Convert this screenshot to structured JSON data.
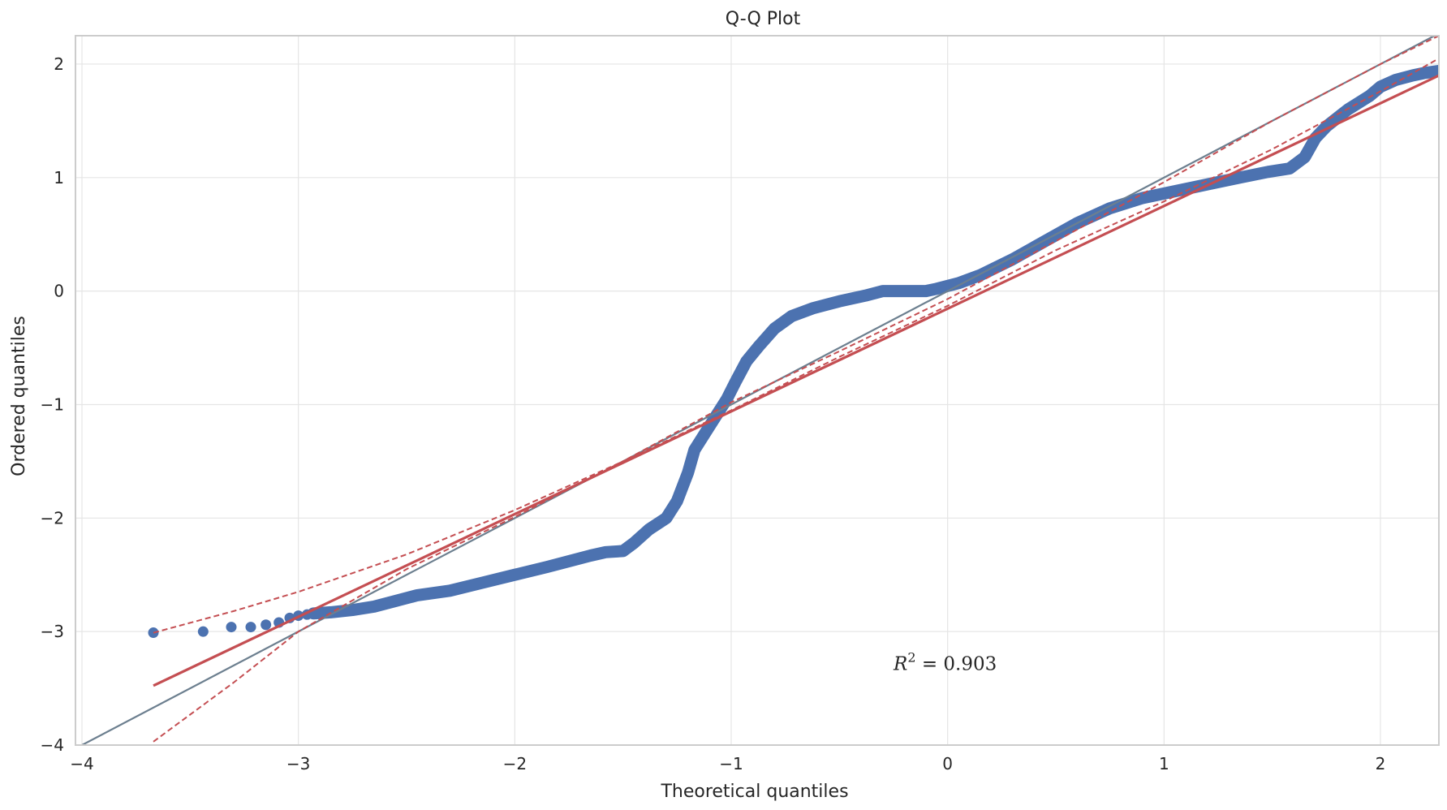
{
  "chart_data": {
    "type": "scatter",
    "title": "Q-Q Plot",
    "xlabel": "Theoretical quantiles",
    "ylabel": "Ordered quantiles",
    "xlim": [
      -4.03,
      2.27
    ],
    "ylim": [
      -4.0,
      2.25
    ],
    "xticks": [
      -4,
      -3,
      -2,
      -1,
      0,
      1,
      2
    ],
    "xtick_labels": [
      "−4",
      "−3",
      "−2",
      "−1",
      "0",
      "1",
      "2"
    ],
    "yticks": [
      -4,
      -3,
      -2,
      -1,
      0,
      1,
      2
    ],
    "ytick_labels": [
      "−4",
      "−3",
      "−2",
      "−1",
      "0",
      "1",
      "2"
    ],
    "grid": true,
    "annotation": {
      "prefix": "R",
      "exponent": "2",
      "text": " = 0.903",
      "x": -0.25,
      "y": -3.34
    },
    "colors": {
      "points": "#4c72b0",
      "fit_line": "#c44e52",
      "reference_line": "#6c7f8f",
      "grid": "#e5e5e5",
      "frame": "#cccccc"
    },
    "outlier_points": [
      [
        -3.67,
        -3.01
      ],
      [
        -3.44,
        -3.0
      ],
      [
        -3.31,
        -2.96
      ],
      [
        -3.22,
        -2.96
      ],
      [
        -3.15,
        -2.94
      ],
      [
        -3.09,
        -2.92
      ],
      [
        -3.04,
        -2.88
      ],
      [
        -3.0,
        -2.86
      ],
      [
        -2.96,
        -2.85
      ]
    ],
    "curve_points": [
      [
        -2.93,
        -2.84
      ],
      [
        -2.85,
        -2.83
      ],
      [
        -2.75,
        -2.81
      ],
      [
        -2.65,
        -2.78
      ],
      [
        -2.55,
        -2.73
      ],
      [
        -2.45,
        -2.68
      ],
      [
        -2.3,
        -2.64
      ],
      [
        -2.15,
        -2.57
      ],
      [
        -2.0,
        -2.5
      ],
      [
        -1.85,
        -2.43
      ],
      [
        -1.75,
        -2.38
      ],
      [
        -1.65,
        -2.33
      ],
      [
        -1.58,
        -2.3
      ],
      [
        -1.5,
        -2.29
      ],
      [
        -1.45,
        -2.22
      ],
      [
        -1.38,
        -2.1
      ],
      [
        -1.3,
        -2.0
      ],
      [
        -1.25,
        -1.85
      ],
      [
        -1.2,
        -1.6
      ],
      [
        -1.17,
        -1.4
      ],
      [
        -1.12,
        -1.25
      ],
      [
        -1.07,
        -1.1
      ],
      [
        -1.02,
        -0.95
      ],
      [
        -0.98,
        -0.8
      ],
      [
        -0.93,
        -0.62
      ],
      [
        -0.87,
        -0.48
      ],
      [
        -0.8,
        -0.33
      ],
      [
        -0.72,
        -0.22
      ],
      [
        -0.62,
        -0.15
      ],
      [
        -0.5,
        -0.09
      ],
      [
        -0.38,
        -0.04
      ],
      [
        -0.3,
        0.0
      ],
      [
        -0.2,
        0.0
      ],
      [
        -0.1,
        0.0
      ],
      [
        -0.05,
        0.02
      ],
      [
        0.05,
        0.07
      ],
      [
        0.15,
        0.14
      ],
      [
        0.3,
        0.28
      ],
      [
        0.45,
        0.44
      ],
      [
        0.6,
        0.6
      ],
      [
        0.75,
        0.73
      ],
      [
        0.9,
        0.82
      ],
      [
        1.05,
        0.88
      ],
      [
        1.2,
        0.94
      ],
      [
        1.35,
        1.0
      ],
      [
        1.48,
        1.05
      ],
      [
        1.58,
        1.08
      ],
      [
        1.65,
        1.18
      ],
      [
        1.7,
        1.35
      ],
      [
        1.75,
        1.45
      ],
      [
        1.85,
        1.6
      ],
      [
        1.95,
        1.72
      ],
      [
        2.0,
        1.8
      ],
      [
        2.07,
        1.86
      ],
      [
        2.15,
        1.9
      ],
      [
        2.2,
        1.92
      ],
      [
        2.27,
        1.94
      ]
    ],
    "fit_line": {
      "slope": 0.905,
      "intercept": -0.155,
      "x_range": [
        -3.67,
        2.27
      ]
    },
    "confidence_upper": [
      [
        -3.67,
        -3.01
      ],
      [
        -3.3,
        -2.82
      ],
      [
        -3.0,
        -2.65
      ],
      [
        -2.5,
        -2.32
      ],
      [
        -2.0,
        -1.93
      ],
      [
        -1.5,
        -1.5
      ],
      [
        -1.0,
        -1.05
      ],
      [
        -0.5,
        -0.58
      ],
      [
        0.0,
        -0.13
      ],
      [
        0.5,
        0.36
      ],
      [
        1.0,
        0.79
      ],
      [
        1.5,
        1.25
      ],
      [
        2.0,
        1.76
      ],
      [
        2.27,
        2.05
      ]
    ],
    "confidence_lower": [
      [
        -3.67,
        -3.97
      ],
      [
        -3.3,
        -3.45
      ],
      [
        -3.0,
        -3.0
      ],
      [
        -2.5,
        -2.45
      ],
      [
        -2.0,
        -1.99
      ],
      [
        -1.5,
        -1.5
      ],
      [
        -1.0,
        -0.98
      ],
      [
        -0.5,
        -0.53
      ],
      [
        0.0,
        -0.07
      ],
      [
        0.5,
        0.44
      ],
      [
        1.0,
        0.96
      ],
      [
        1.5,
        1.5
      ],
      [
        2.0,
        2.0
      ],
      [
        2.27,
        2.25
      ]
    ],
    "reference_line": {
      "slope": 1.0,
      "intercept": 0.0
    }
  }
}
